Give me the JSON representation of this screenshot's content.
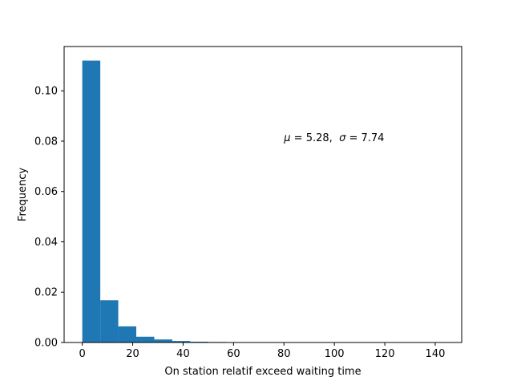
{
  "chart_data": {
    "type": "bar",
    "title": "",
    "xlabel": "On station relatif exceed waiting time",
    "ylabel": "Frequency",
    "xlim": [
      -7.2,
      150.5
    ],
    "ylim": [
      0,
      0.1176
    ],
    "xticks": [
      0,
      20,
      40,
      60,
      80,
      100,
      120,
      140
    ],
    "xtick_labels": [
      "0",
      "20",
      "40",
      "60",
      "80",
      "100",
      "120",
      "140"
    ],
    "yticks": [
      0.0,
      0.02,
      0.04,
      0.06,
      0.08,
      0.1
    ],
    "ytick_labels": [
      "0.00",
      "0.02",
      "0.04",
      "0.06",
      "0.08",
      "0.10"
    ],
    "bin_edges": [
      0,
      7.14,
      14.28,
      21.42,
      28.56,
      35.7,
      42.84,
      49.98,
      57.12,
      64.26,
      71.4,
      78.54,
      85.68,
      92.82,
      99.96,
      107.1,
      114.24,
      121.38,
      128.52,
      135.66,
      142.8
    ],
    "values": [
      0.112,
      0.0168,
      0.0064,
      0.0023,
      0.0012,
      0.0006,
      0.0003,
      0.0002,
      0.0001,
      5e-05,
      3e-05,
      2e-05,
      2e-05,
      1e-05,
      1e-05,
      1e-05,
      1e-05,
      1e-05,
      1e-05,
      1e-05
    ],
    "bar_color": "#1f77b4",
    "grid": false,
    "annotation": {
      "mu_symbol": "μ",
      "eq_sign": " = ",
      "mu_value": "5.28",
      "separator": ",  ",
      "sigma_symbol": "σ",
      "sigma_value": "7.74",
      "x": 80,
      "y": 0.08
    }
  }
}
